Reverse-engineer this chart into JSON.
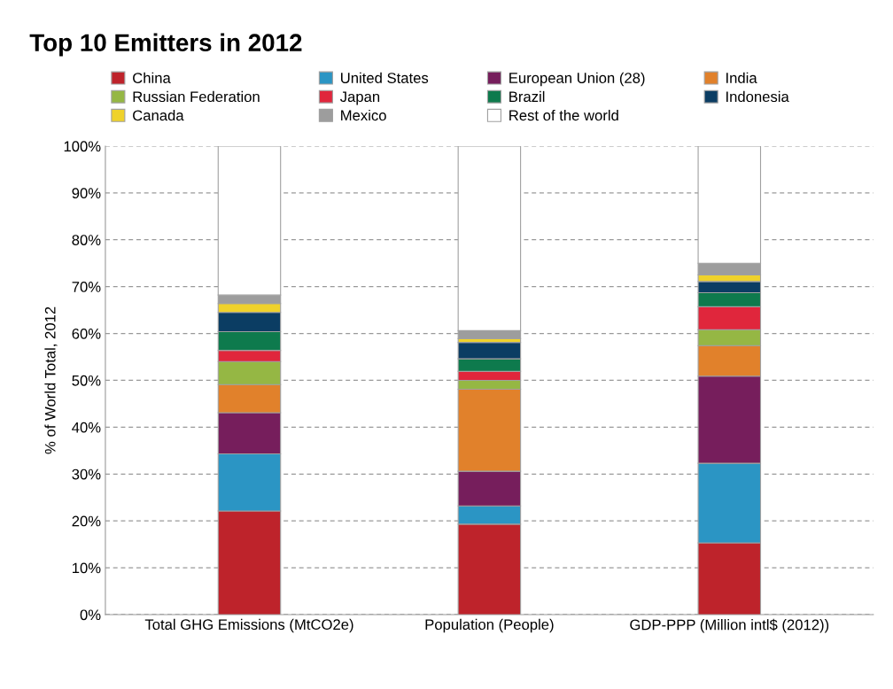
{
  "chart_data": {
    "type": "bar",
    "stacked": true,
    "title": "Top 10 Emitters in 2012",
    "ylabel": "% of World Total, 2012",
    "categories": [
      "Total GHG Emissions (MtCO2e)",
      "Population (People)",
      "GDP-PPP (Million intl$ (2012))"
    ],
    "series": [
      {
        "name": "China",
        "color": "#be232b",
        "values": [
          22.1,
          19.3,
          15.3
        ]
      },
      {
        "name": "United States",
        "color": "#2b95c4",
        "values": [
          12.2,
          3.9,
          17.0
        ]
      },
      {
        "name": "European Union (28)",
        "color": "#761e5c",
        "values": [
          8.8,
          7.4,
          18.6
        ]
      },
      {
        "name": "India",
        "color": "#e1812b",
        "values": [
          6.0,
          17.5,
          6.5
        ]
      },
      {
        "name": "Russian Federation",
        "color": "#95b744",
        "values": [
          4.9,
          1.9,
          3.4
        ]
      },
      {
        "name": "Japan",
        "color": "#e0263c",
        "values": [
          2.4,
          1.9,
          4.9
        ]
      },
      {
        "name": "Brazil",
        "color": "#0e7a4d",
        "values": [
          4.0,
          2.7,
          3.0
        ]
      },
      {
        "name": "Indonesia",
        "color": "#0b3d63",
        "values": [
          4.1,
          3.5,
          2.4
        ]
      },
      {
        "name": "Canada",
        "color": "#efd22b",
        "values": [
          1.9,
          0.8,
          1.4
        ]
      },
      {
        "name": "Mexico",
        "color": "#9d9d9d",
        "values": [
          1.8,
          1.7,
          2.5
        ]
      },
      {
        "name": "Rest of the world",
        "color": "#ffffff",
        "values": [
          31.8,
          39.4,
          25.0
        ]
      }
    ],
    "ylim": [
      0,
      100
    ],
    "yticks": [
      {
        "value": 0,
        "label": "0%"
      },
      {
        "value": 10,
        "label": "10%"
      },
      {
        "value": 20,
        "label": "20%"
      },
      {
        "value": 30,
        "label": "30%"
      },
      {
        "value": 40,
        "label": "40%"
      },
      {
        "value": 50,
        "label": "50%"
      },
      {
        "value": 60,
        "label": "60%"
      },
      {
        "value": 70,
        "label": "70%"
      },
      {
        "value": 80,
        "label": "80%"
      },
      {
        "value": 90,
        "label": "90%"
      },
      {
        "value": 100,
        "label": "100%"
      }
    ],
    "grid": "y",
    "legend": "top"
  }
}
